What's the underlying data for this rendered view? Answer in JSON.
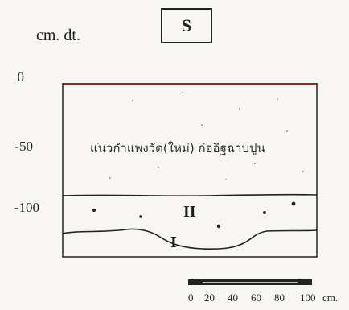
{
  "header": {
    "direction_label": "S",
    "unit_label": "cm. dt."
  },
  "y_axis": {
    "ticks": [
      "0",
      "-50",
      "-100"
    ]
  },
  "section": {
    "upper_stratum_text": "แนวกำแพงวัด(ใหม่) ก่ออิฐฉาบปูน",
    "layer_II_label": "II",
    "layer_I_label": "I"
  },
  "scale_bar": {
    "ticks": [
      "0",
      "20",
      "40",
      "60",
      "80",
      "100"
    ],
    "unit": "cm."
  },
  "colors": {
    "top_line": "#8b2a2a",
    "ink": "#222222",
    "paper": "#f7f6f2"
  }
}
